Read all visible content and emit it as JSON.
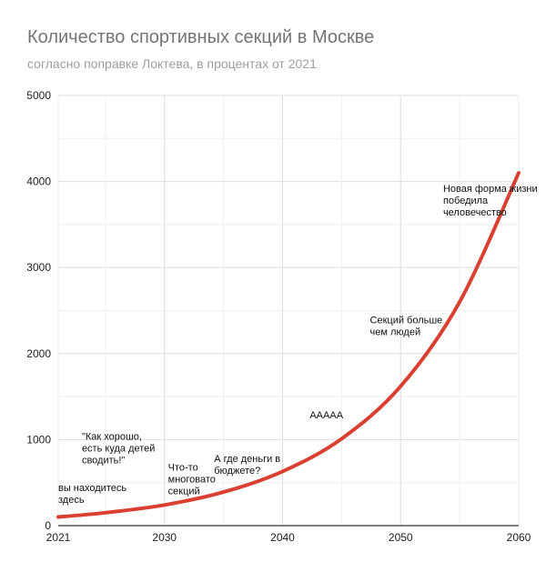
{
  "chart_data": {
    "type": "line",
    "title": "Количество спортивных секций в Москве",
    "subtitle": "согласно поправке Локтева, в процентах от 2021",
    "xlabel": "",
    "ylabel": "",
    "xlim": [
      2021,
      2060
    ],
    "ylim": [
      0,
      5000
    ],
    "x_ticks": [
      "2021",
      "2030",
      "2040",
      "2050",
      "2060"
    ],
    "x_tick_values": [
      2021,
      2030,
      2040,
      2050,
      2060
    ],
    "y_ticks": [
      "0",
      "1000",
      "2000",
      "3000",
      "4000",
      "5000"
    ],
    "y_tick_values": [
      0,
      1000,
      2000,
      3000,
      4000,
      5000
    ],
    "grid": true,
    "legend": "none",
    "colors": {
      "line": "#d94032",
      "grid": "#dddddd",
      "axis": "#333333"
    },
    "series": [
      {
        "x": [
          2021,
          2025,
          2030,
          2035,
          2040,
          2045,
          2050,
          2055,
          2060
        ],
        "values": [
          100,
          150,
          240,
          390,
          630,
          1010,
          1620,
          2600,
          4100
        ]
      }
    ],
    "annotations": [
      {
        "x": 2021,
        "y": 400,
        "lines": [
          "вы находитесь",
          "здесь"
        ]
      },
      {
        "x": 2023,
        "y": 1000,
        "lines": [
          "\"Как хорошо,",
          "есть куда детей",
          "сводить!\""
        ]
      },
      {
        "x": 2030.3,
        "y": 640,
        "lines": [
          "Что-то",
          "многовато",
          "секций"
        ]
      },
      {
        "x": 2034.2,
        "y": 740,
        "lines": [
          "А где деньги в",
          "бюджете?"
        ]
      },
      {
        "x": 2042.3,
        "y": 1250,
        "lines": [
          "ААААА"
        ]
      },
      {
        "x": 2047.4,
        "y": 2350,
        "lines": [
          "Секций больше",
          "чем людей"
        ]
      },
      {
        "x": 2053.6,
        "y": 3880,
        "lines": [
          "Новая форма жизни",
          "победила",
          "человечество"
        ]
      }
    ]
  }
}
